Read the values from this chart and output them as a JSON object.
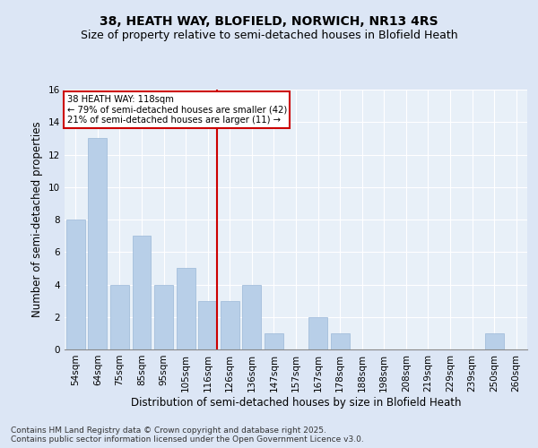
{
  "title": "38, HEATH WAY, BLOFIELD, NORWICH, NR13 4RS",
  "subtitle": "Size of property relative to semi-detached houses in Blofield Heath",
  "xlabel": "Distribution of semi-detached houses by size in Blofield Heath",
  "ylabel": "Number of semi-detached properties",
  "categories": [
    "54sqm",
    "64sqm",
    "75sqm",
    "85sqm",
    "95sqm",
    "105sqm",
    "116sqm",
    "126sqm",
    "136sqm",
    "147sqm",
    "157sqm",
    "167sqm",
    "178sqm",
    "188sqm",
    "198sqm",
    "208sqm",
    "219sqm",
    "229sqm",
    "239sqm",
    "250sqm",
    "260sqm"
  ],
  "values": [
    8,
    13,
    4,
    7,
    4,
    5,
    3,
    3,
    4,
    1,
    0,
    2,
    1,
    0,
    0,
    0,
    0,
    0,
    0,
    1,
    0
  ],
  "bar_color": "#b8cfe8",
  "bar_edge_color": "#9ab8d8",
  "vline_x_index": 6,
  "vline_color": "#cc0000",
  "annotation_title": "38 HEATH WAY: 118sqm",
  "annotation_line1": "← 79% of semi-detached houses are smaller (42)",
  "annotation_line2": "21% of semi-detached houses are larger (11) →",
  "annotation_box_color": "#ffffff",
  "annotation_box_edge_color": "#cc0000",
  "ylim": [
    0,
    16
  ],
  "yticks": [
    0,
    2,
    4,
    6,
    8,
    10,
    12,
    14,
    16
  ],
  "footer": "Contains HM Land Registry data © Crown copyright and database right 2025.\nContains public sector information licensed under the Open Government Licence v3.0.",
  "bg_color": "#dce6f5",
  "plot_bg_color": "#e8f0f8",
  "title_fontsize": 10,
  "subtitle_fontsize": 9,
  "axis_label_fontsize": 8.5,
  "tick_fontsize": 7.5,
  "footer_fontsize": 6.5
}
